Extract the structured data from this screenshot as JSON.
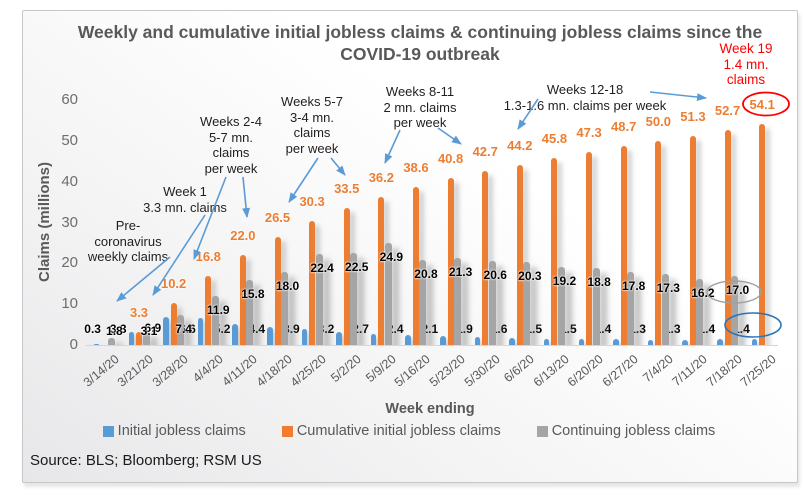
{
  "title": {
    "line1": "Weekly and cumulative initial jobless claims",
    "line2": "& continuing jobless claims since the COVID-19 outbreak"
  },
  "axes": {
    "y_label": "Claims (millions)",
    "x_label": "Week ending",
    "y_ticks": [
      60,
      50,
      40,
      30,
      20,
      10,
      0
    ]
  },
  "legend": {
    "items": [
      {
        "label": "Initial jobless claims",
        "color": "#5B9BD5"
      },
      {
        "label": "Cumulative initial jobless claims",
        "color": "#ED7D31"
      },
      {
        "label": "Continuing jobless claims",
        "color": "#A5A5A5"
      }
    ]
  },
  "source_note": "Source: BLS; Bloomberg; RSM US",
  "chart_data": {
    "type": "bar",
    "title": "Weekly and cumulative initial jobless claims & continuing jobless claims since the COVID-19 outbreak",
    "xlabel": "Week ending",
    "ylabel": "Claims (millions)",
    "ylim": [
      0,
      60
    ],
    "grid": false,
    "legend_position": "bottom",
    "categories": [
      "3/14/20",
      "3/21/20",
      "3/28/20",
      "4/4/20",
      "4/11/20",
      "4/18/20",
      "4/25/20",
      "5/2/20",
      "5/9/20",
      "5/16/20",
      "5/23/20",
      "5/30/20",
      "6/6/20",
      "6/13/20",
      "6/20/20",
      "6/27/20",
      "7/4/20",
      "7/11/20",
      "7/18/20",
      "7/25/20"
    ],
    "series": [
      {
        "name": "Initial jobless claims",
        "color": "#5B9BD5",
        "values": [
          0.3,
          3.3,
          6.9,
          6.6,
          5.2,
          4.4,
          3.9,
          3.2,
          2.7,
          2.4,
          2.1,
          1.9,
          1.6,
          1.5,
          1.5,
          1.4,
          1.3,
          1.3,
          1.4,
          1.4
        ]
      },
      {
        "name": "Cumulative initial jobless claims",
        "color": "#ED7D31",
        "values": [
          null,
          3.3,
          10.2,
          16.8,
          22.0,
          26.5,
          30.3,
          33.5,
          36.2,
          38.6,
          40.8,
          42.7,
          44.2,
          45.8,
          47.3,
          48.7,
          50.0,
          51.3,
          52.7,
          54.1
        ]
      },
      {
        "name": "Continuing jobless claims",
        "color": "#A5A5A5",
        "values": [
          1.8,
          3.1,
          7.4,
          11.9,
          15.8,
          18.0,
          22.4,
          22.5,
          24.9,
          20.8,
          21.3,
          20.6,
          20.3,
          19.2,
          18.8,
          17.8,
          17.3,
          16.2,
          17.0,
          null
        ]
      }
    ]
  },
  "annotations": {
    "pre_covid": {
      "lines": [
        "Pre-",
        "coronavirus",
        "weekly claims"
      ]
    },
    "week1": {
      "lines": [
        "Week 1",
        "3.3 mn. claims"
      ]
    },
    "weeks2_4": {
      "lines": [
        "Weeks 2-4",
        "5-7 mn.",
        "claims",
        "per week"
      ]
    },
    "weeks5_7": {
      "lines": [
        "Weeks 5-7",
        "3-4 mn.",
        "claims",
        "per week"
      ]
    },
    "weeks8_11": {
      "lines": [
        "Weeks 8-11",
        "2 mn. claims",
        "per week"
      ]
    },
    "weeks12_18": {
      "lines": [
        "Weeks 12-18",
        "1.3-1.6 mn. claims per week"
      ]
    },
    "week19": {
      "lines": [
        "Week 19",
        "1.4 mn.",
        "claims"
      ],
      "color": "#FF0000"
    }
  },
  "highlights": {
    "red_ellipse_on": "54.1",
    "gray_ellipse_on": "17.0",
    "blue_ellipse_on": "1.4",
    "red": "#FF0000",
    "gray": "#A0A0A0",
    "blue": "#2E75B6",
    "arrow_color": "#5B9BD5"
  }
}
